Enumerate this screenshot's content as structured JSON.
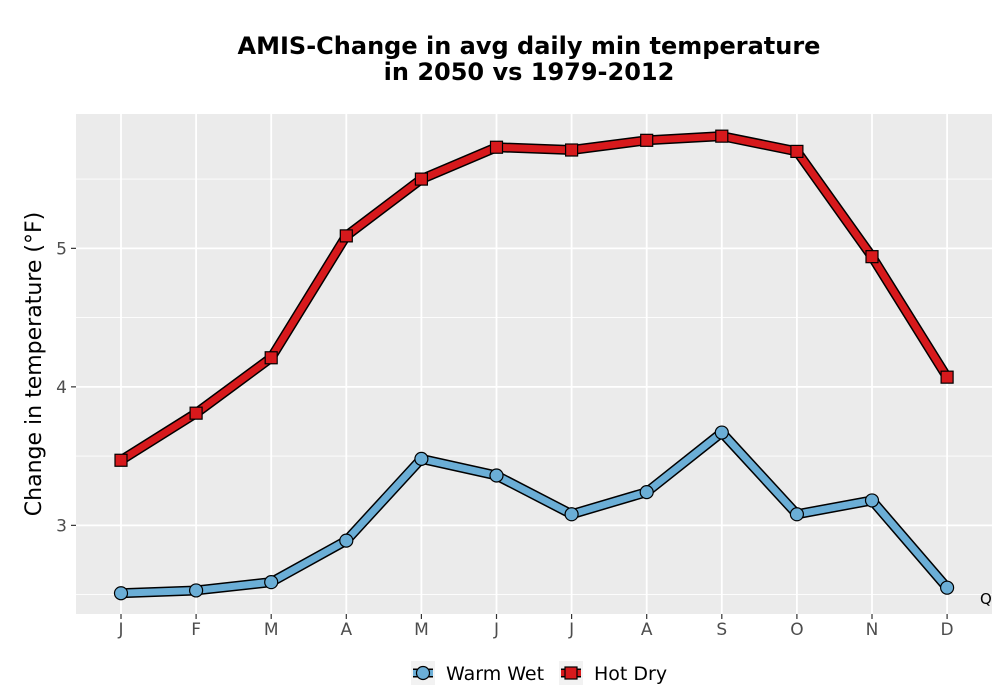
{
  "chart_data": {
    "type": "line",
    "title": "AMIS-Change in avg daily min temperature\nin 2050 vs 1979-2012",
    "xlabel": "",
    "ylabel": "Change in temperature (°F)",
    "categories": [
      "J",
      "F",
      "M",
      "A",
      "M",
      "J",
      "J",
      "A",
      "S",
      "O",
      "N",
      "D"
    ],
    "y_ticks": [
      "3",
      "4",
      "5"
    ],
    "ylim": [
      2.36,
      5.97
    ],
    "grid": true,
    "legend_position": "bottom",
    "annotation": "Q",
    "series": [
      {
        "name": "Warm Wet",
        "marker": "circle",
        "color": "#6baed6",
        "values": [
          2.51,
          2.53,
          2.59,
          2.89,
          3.48,
          3.36,
          3.08,
          3.24,
          3.67,
          3.08,
          3.18,
          2.55
        ]
      },
      {
        "name": "Hot Dry",
        "marker": "square",
        "color": "#d7191c",
        "values": [
          3.47,
          3.81,
          4.21,
          5.09,
          5.5,
          5.73,
          5.71,
          5.78,
          5.81,
          5.7,
          4.94,
          4.07
        ]
      }
    ],
    "colors": {
      "panel_background": "#ebebeb",
      "grid": "#ffffff",
      "outline": "#000000"
    }
  }
}
